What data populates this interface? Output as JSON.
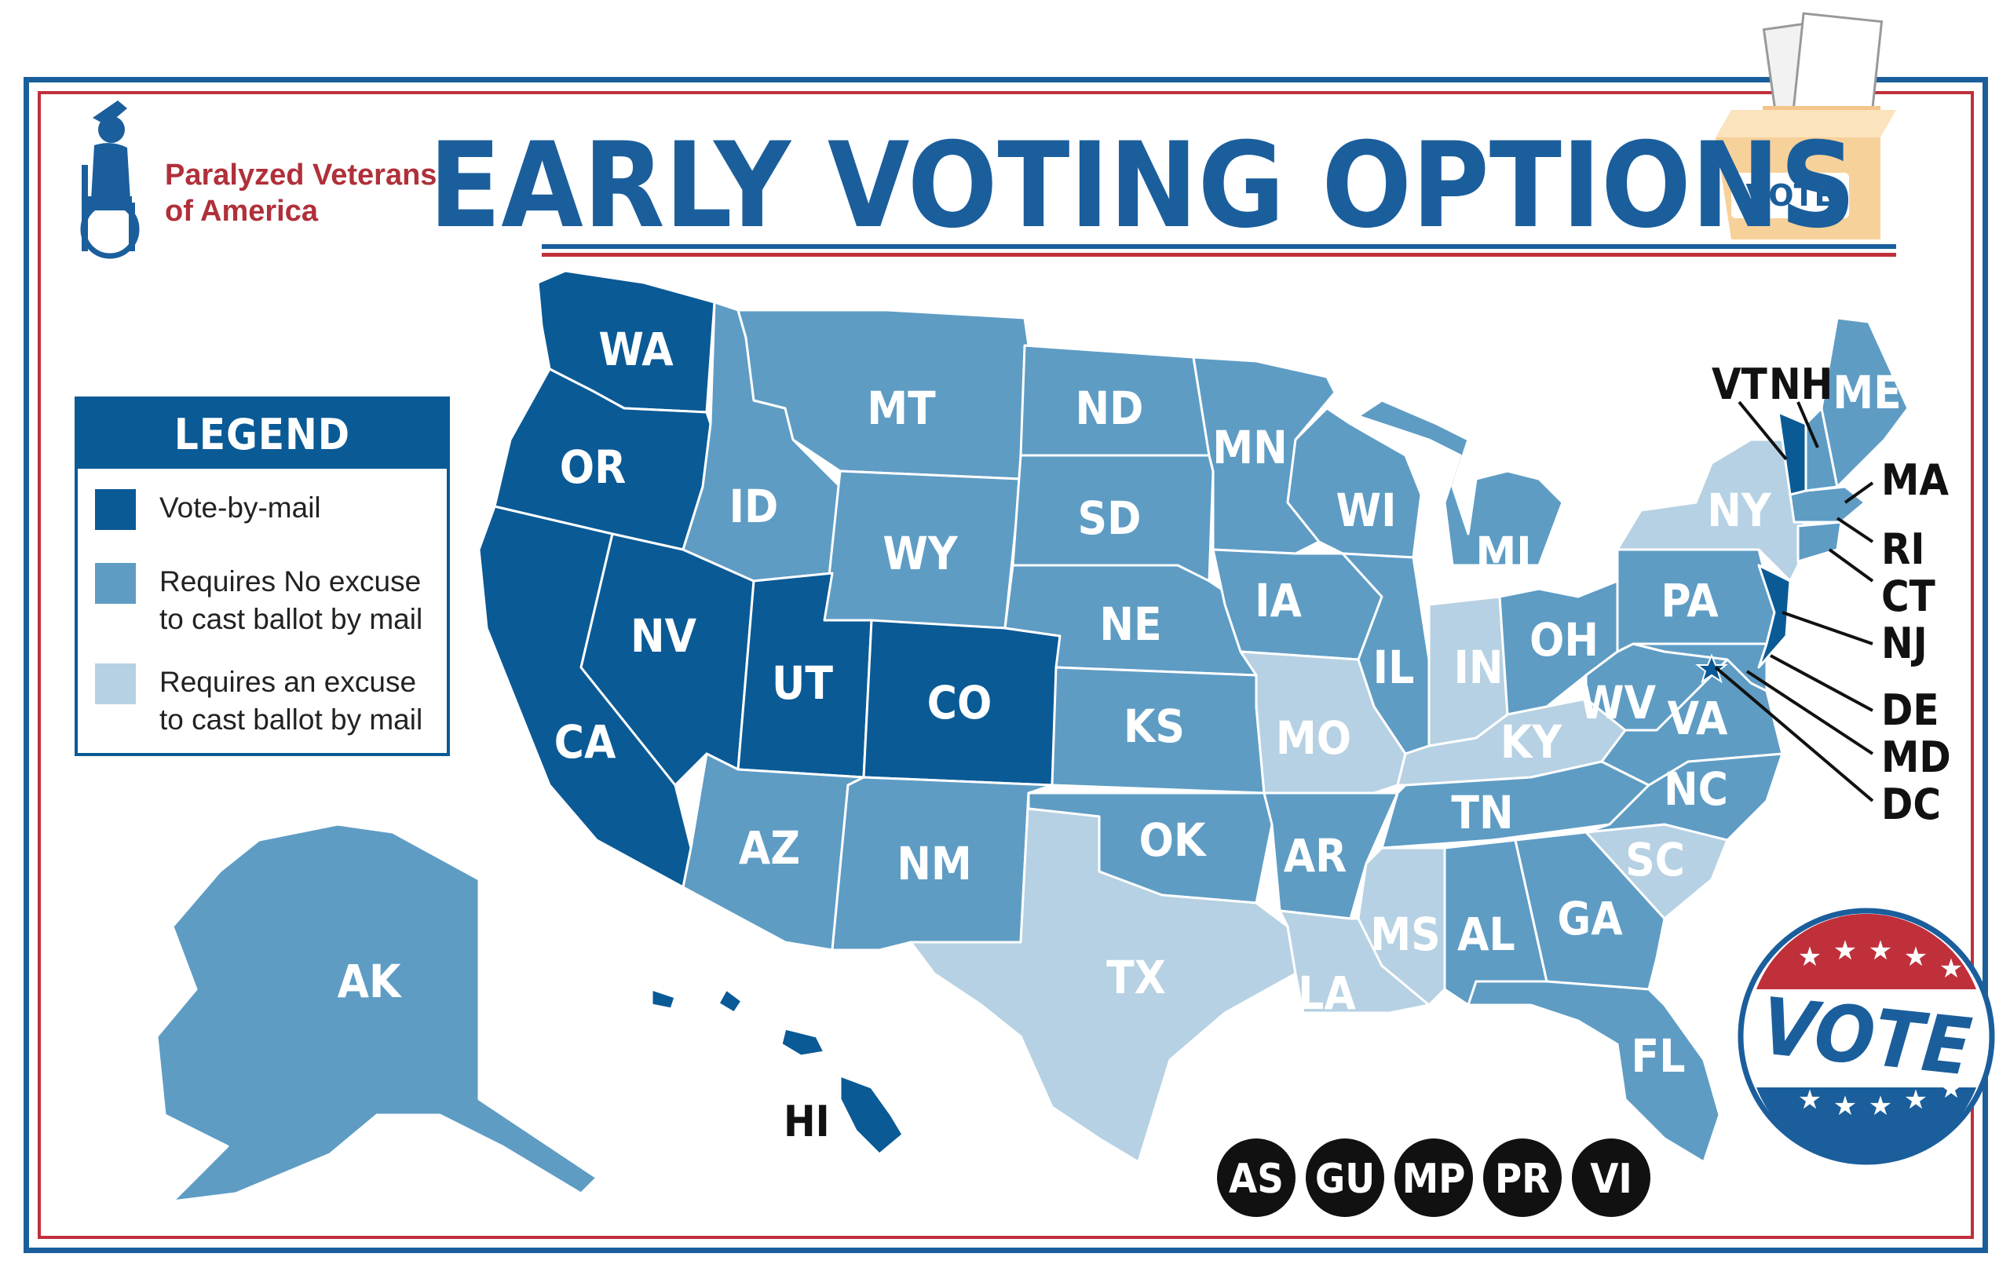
{
  "title": "EARLY VOTING OPTIONS",
  "organization": "Paralyzed Veterans\nof America",
  "ballot_box_label": "VOTE",
  "vote_button_label": "VOTE",
  "legend": {
    "title": "LEGEND",
    "items": [
      {
        "label": "Vote-by-mail",
        "color": "#0a5a96"
      },
      {
        "label": "Requires No excuse\nto cast ballot by mail",
        "color": "#5e9cc4"
      },
      {
        "label": "Requires an excuse\nto cast ballot by mail",
        "color": "#b6d1e3"
      }
    ]
  },
  "colors": {
    "vote_by_mail": "#0a5a96",
    "no_excuse": "#5e9cc4",
    "excuse": "#b6d1e3",
    "border_blue": "#1b5e9c",
    "border_red": "#c0303b"
  },
  "states": {
    "WA": "WA",
    "OR": "OR",
    "CA": "CA",
    "NV": "NV",
    "ID": "ID",
    "MT": "MT",
    "WY": "WY",
    "UT": "UT",
    "CO": "CO",
    "AZ": "AZ",
    "NM": "NM",
    "ND": "ND",
    "SD": "SD",
    "NE": "NE",
    "KS": "KS",
    "OK": "OK",
    "TX": "TX",
    "MN": "MN",
    "IA": "IA",
    "MO": "MO",
    "AR": "AR",
    "LA": "LA",
    "WI": "WI",
    "IL": "IL",
    "MI": "MI",
    "IN": "IN",
    "OH": "OH",
    "KY": "KY",
    "TN": "TN",
    "MS": "MS",
    "AL": "AL",
    "GA": "GA",
    "FL": "FL",
    "SC": "SC",
    "NC": "NC",
    "VA": "VA",
    "WV": "WV",
    "PA": "PA",
    "NY": "NY",
    "ME": "ME",
    "AK": "AK",
    "HI": "HI"
  },
  "callouts": {
    "VT": "VT",
    "NH": "NH",
    "MA": "MA",
    "RI": "RI",
    "CT": "CT",
    "NJ": "NJ",
    "DE": "DE",
    "MD": "MD",
    "DC": "DC"
  },
  "territories": [
    "AS",
    "GU",
    "MP",
    "PR",
    "VI"
  ]
}
